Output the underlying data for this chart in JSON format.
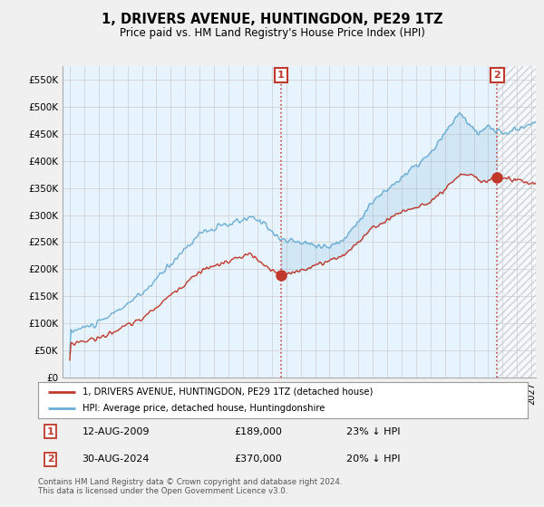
{
  "title": "1, DRIVERS AVENUE, HUNTINGDON, PE29 1TZ",
  "subtitle": "Price paid vs. HM Land Registry's House Price Index (HPI)",
  "ylim": [
    0,
    575000
  ],
  "yticks": [
    0,
    50000,
    100000,
    150000,
    200000,
    250000,
    300000,
    350000,
    400000,
    450000,
    500000,
    550000
  ],
  "ytick_labels": [
    "£0",
    "£50K",
    "£100K",
    "£150K",
    "£200K",
    "£250K",
    "£300K",
    "£350K",
    "£400K",
    "£450K",
    "£500K",
    "£550K"
  ],
  "hpi_color": "#6baed6",
  "price_color": "#c0392b",
  "sale1_date": "12-AUG-2009",
  "sale1_price": 189000,
  "sale1_note": "23% ↓ HPI",
  "sale1_label": "1",
  "sale2_date": "30-AUG-2024",
  "sale2_price": 370000,
  "sale2_note": "20% ↓ HPI",
  "sale2_label": "2",
  "legend_property": "1, DRIVERS AVENUE, HUNTINGDON, PE29 1TZ (detached house)",
  "legend_hpi": "HPI: Average price, detached house, Huntingdonshire",
  "footnote": "Contains HM Land Registry data © Crown copyright and database right 2024.\nThis data is licensed under the Open Government Licence v3.0.",
  "background_color": "#f0f0f0",
  "plot_bg_color": "#e8f4fd",
  "grid_color": "#cccccc",
  "fill_alpha": 0.25
}
